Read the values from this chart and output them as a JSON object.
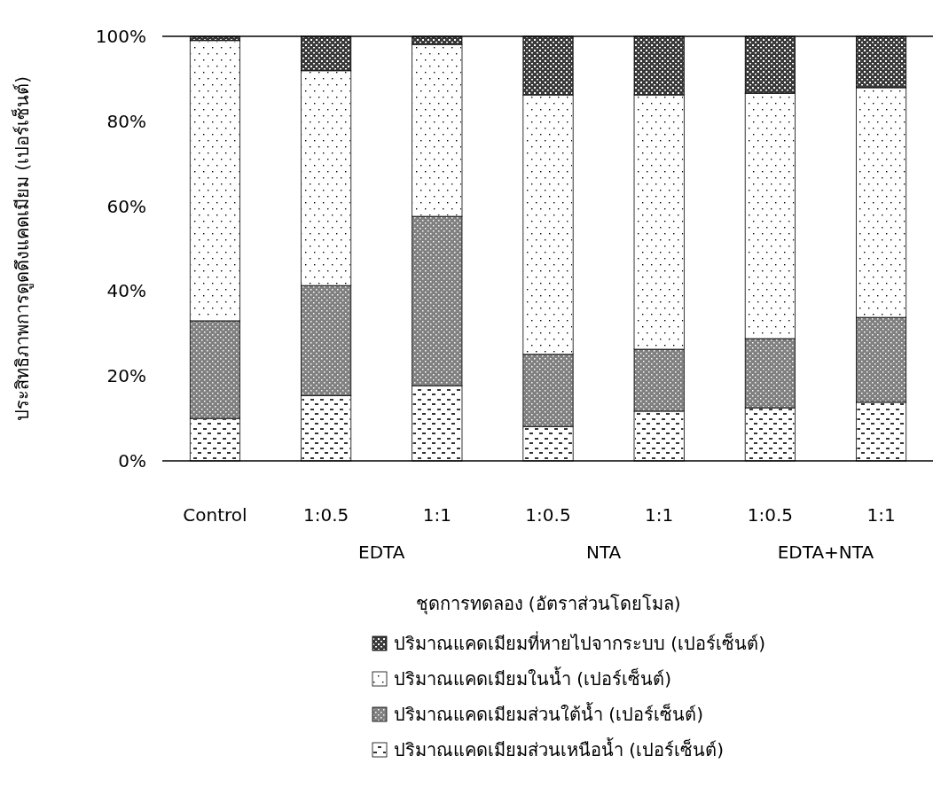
{
  "chart_data": {
    "type": "bar",
    "stacked": true,
    "xlabel": "ชุดการทดลอง (อัตราส่วนโดยโมล)",
    "ylabel": "ประสิทธิภาพการดูดดึงแคดเมียม (เปอร์เซ็นต์)",
    "categories": [
      "Control",
      "1:0.5",
      "1:1",
      "1:0.5",
      "1:1",
      "1:0.5",
      "1:1"
    ],
    "annotations": [
      "EDTA",
      "NTA",
      "EDTA+NTA"
    ],
    "series": [
      {
        "name": "ปริมาณแคดเมียมส่วนเหนือน้ำ (เปอร์เซ็นต์)",
        "color": "#ffffff",
        "values": [
          10.0,
          15.4,
          17.7,
          8.1,
          11.7,
          12.5,
          13.8
        ]
      },
      {
        "name": "ปริมาณแคดเมียมส่วนใต้น้ำ (เปอร์เซ็นต์)",
        "color": "#808080",
        "values": [
          23.0,
          25.9,
          39.9,
          17.0,
          14.6,
          16.3,
          20.0
        ]
      },
      {
        "name": "ปริมาณแคดเมียมในน้ำ (เปอร์เซ็นต์)",
        "color": "#ffffff",
        "values": [
          66.0,
          50.6,
          40.5,
          61.1,
          59.9,
          57.8,
          54.1
        ]
      },
      {
        "name": "ปริมาณแคดเมียมที่หายไปจากระบบ (เปอร์เซ็นต์)",
        "color": "#3a3a3a",
        "values": [
          1.0,
          8.1,
          1.9,
          13.8,
          13.8,
          13.4,
          12.1
        ]
      }
    ],
    "ylim": [
      0,
      100
    ],
    "yticks": [
      {
        "value": 0,
        "label": "0%"
      },
      {
        "value": 20,
        "label": "20%"
      },
      {
        "value": 40,
        "label": "40%"
      },
      {
        "value": 60,
        "label": "60%"
      },
      {
        "value": 80,
        "label": "80%"
      },
      {
        "value": 100,
        "label": "100%"
      }
    ],
    "grid": false,
    "legend": "bottom"
  }
}
